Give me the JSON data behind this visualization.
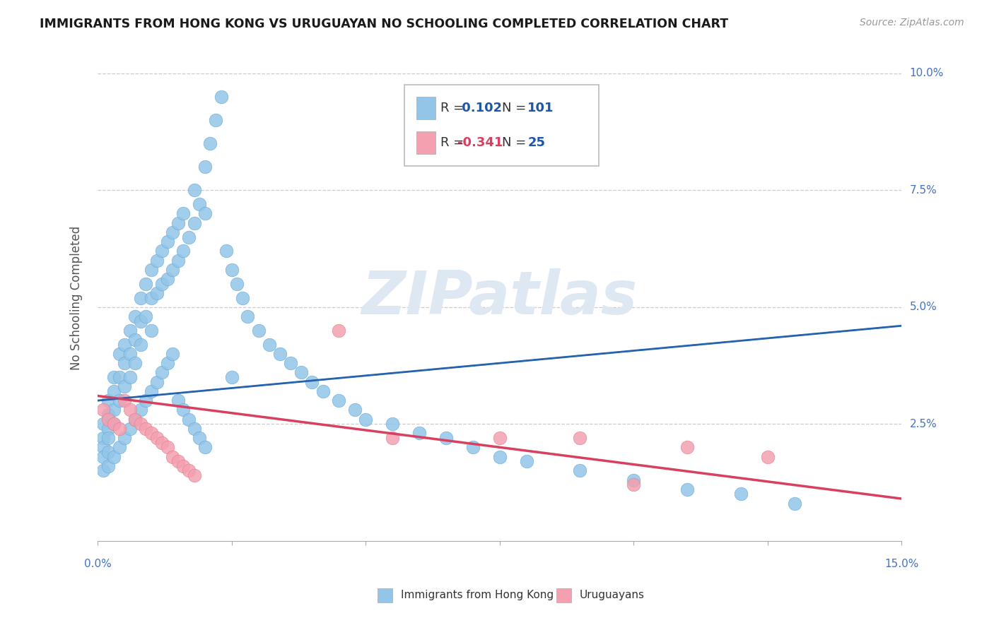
{
  "title": "IMMIGRANTS FROM HONG KONG VS URUGUAYAN NO SCHOOLING COMPLETED CORRELATION CHART",
  "source": "Source: ZipAtlas.com",
  "ylabel": "No Schooling Completed",
  "xlim": [
    0.0,
    0.15
  ],
  "ylim": [
    0.0,
    0.104
  ],
  "R_blue": 0.102,
  "N_blue": 101,
  "R_pink": -0.341,
  "N_pink": 25,
  "blue_color": "#92C5E8",
  "pink_color": "#F4A0B0",
  "blue_line_color": "#2563B0",
  "pink_line_color": "#D94060",
  "num_color_blue": "#1E56A8",
  "num_color_pink": "#D94060",
  "n_color": "#1E56A8",
  "background_color": "#ffffff",
  "grid_color": "#cccccc",
  "tick_label_color": "#4472C4",
  "ylabel_color": "#555555",
  "legend_label_blue": "Immigrants from Hong Kong",
  "legend_label_pink": "Uruguayans",
  "blue_trend_y0": 0.03,
  "blue_trend_y1": 0.046,
  "pink_trend_y0": 0.031,
  "pink_trend_y1": 0.009,
  "blue_scatter_x": [
    0.001,
    0.001,
    0.001,
    0.001,
    0.002,
    0.002,
    0.002,
    0.002,
    0.002,
    0.003,
    0.003,
    0.003,
    0.003,
    0.004,
    0.004,
    0.004,
    0.005,
    0.005,
    0.005,
    0.006,
    0.006,
    0.006,
    0.007,
    0.007,
    0.007,
    0.008,
    0.008,
    0.008,
    0.009,
    0.009,
    0.01,
    0.01,
    0.01,
    0.011,
    0.011,
    0.012,
    0.012,
    0.013,
    0.013,
    0.014,
    0.014,
    0.015,
    0.015,
    0.016,
    0.016,
    0.017,
    0.018,
    0.018,
    0.019,
    0.02,
    0.02,
    0.021,
    0.022,
    0.023,
    0.024,
    0.025,
    0.026,
    0.027,
    0.028,
    0.03,
    0.032,
    0.034,
    0.036,
    0.038,
    0.04,
    0.042,
    0.045,
    0.048,
    0.05,
    0.055,
    0.06,
    0.065,
    0.07,
    0.075,
    0.08,
    0.09,
    0.1,
    0.11,
    0.12,
    0.13,
    0.001,
    0.002,
    0.003,
    0.004,
    0.005,
    0.006,
    0.007,
    0.008,
    0.009,
    0.01,
    0.011,
    0.012,
    0.013,
    0.014,
    0.015,
    0.016,
    0.017,
    0.018,
    0.019,
    0.02,
    0.025
  ],
  "blue_scatter_y": [
    0.025,
    0.022,
    0.02,
    0.018,
    0.03,
    0.027,
    0.024,
    0.022,
    0.019,
    0.035,
    0.032,
    0.028,
    0.025,
    0.04,
    0.035,
    0.03,
    0.042,
    0.038,
    0.033,
    0.045,
    0.04,
    0.035,
    0.048,
    0.043,
    0.038,
    0.052,
    0.047,
    0.042,
    0.055,
    0.048,
    0.058,
    0.052,
    0.045,
    0.06,
    0.053,
    0.062,
    0.055,
    0.064,
    0.056,
    0.066,
    0.058,
    0.068,
    0.06,
    0.07,
    0.062,
    0.065,
    0.075,
    0.068,
    0.072,
    0.08,
    0.07,
    0.085,
    0.09,
    0.095,
    0.062,
    0.058,
    0.055,
    0.052,
    0.048,
    0.045,
    0.042,
    0.04,
    0.038,
    0.036,
    0.034,
    0.032,
    0.03,
    0.028,
    0.026,
    0.025,
    0.023,
    0.022,
    0.02,
    0.018,
    0.017,
    0.015,
    0.013,
    0.011,
    0.01,
    0.008,
    0.015,
    0.016,
    0.018,
    0.02,
    0.022,
    0.024,
    0.026,
    0.028,
    0.03,
    0.032,
    0.034,
    0.036,
    0.038,
    0.04,
    0.03,
    0.028,
    0.026,
    0.024,
    0.022,
    0.02,
    0.035
  ],
  "pink_scatter_x": [
    0.001,
    0.002,
    0.003,
    0.004,
    0.005,
    0.006,
    0.007,
    0.008,
    0.009,
    0.01,
    0.011,
    0.012,
    0.013,
    0.014,
    0.015,
    0.016,
    0.017,
    0.018,
    0.045,
    0.055,
    0.075,
    0.09,
    0.1,
    0.11,
    0.125
  ],
  "pink_scatter_y": [
    0.028,
    0.026,
    0.025,
    0.024,
    0.03,
    0.028,
    0.026,
    0.025,
    0.024,
    0.023,
    0.022,
    0.021,
    0.02,
    0.018,
    0.017,
    0.016,
    0.015,
    0.014,
    0.045,
    0.022,
    0.022,
    0.022,
    0.012,
    0.02,
    0.018
  ]
}
